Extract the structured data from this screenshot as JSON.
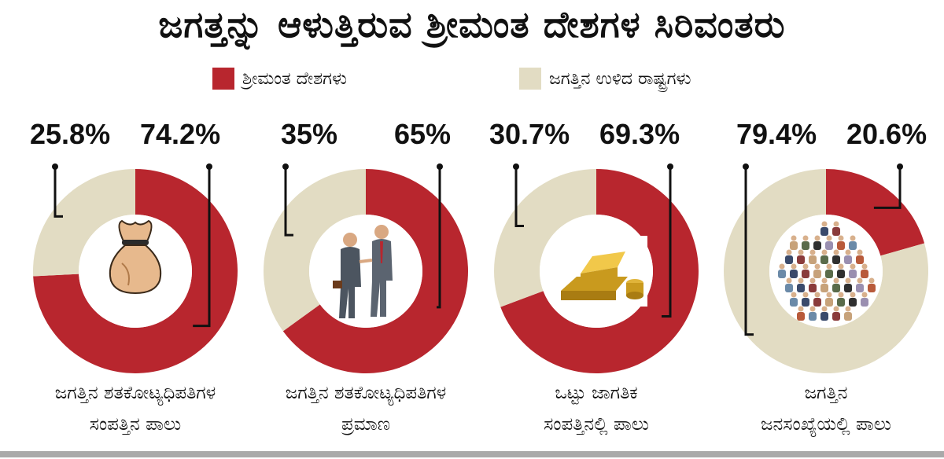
{
  "title": "ಜಗತ್ತನ್ನು ಆಳುತ್ತಿರುವ ಶ್ರೀಮಂತ ದೇಶಗಳ ಸಿರಿವಂತರು",
  "legend": [
    {
      "label": "ಶ್ರೀಮಂತ ದೇಶಗಳು",
      "color": "#b8262e"
    },
    {
      "label": "ಜಗತ್ತಿನ ಉಳಿದ ರಾಷ್ಟ್ರಗಳು",
      "color": "#e2dcc3"
    }
  ],
  "colors": {
    "rich": "#b8262e",
    "rest": "#e2dcc3"
  },
  "charts": [
    {
      "icon": "money-bag-icon",
      "rest_label": "25.8%",
      "rich_label": "74.2%",
      "caption_lines": [
        "ಜಗತ್ತಿನ ಶತಕೋಟ್ಯಧಿಪತಿಗಳ",
        "ಸಂಪತ್ತಿನ ಪಾಲು"
      ]
    },
    {
      "icon": "businessmen-handshake-icon",
      "rest_label": "35%",
      "rich_label": "65%",
      "caption_lines": [
        "ಜಗತ್ತಿನ ಶತಕೋಟ್ಯಧಿಪತಿಗಳ",
        "ಪ್ರಮಾಣ"
      ]
    },
    {
      "icon": "gold-bars-icon",
      "rest_label": "30.7%",
      "rich_label": "69.3%",
      "caption_lines": [
        "ಒಟ್ಟು ಜಾಗತಿಕ",
        "ಸಂಪತ್ತಿನಲ್ಲಿ ಪಾಲು"
      ]
    },
    {
      "icon": "crowd-icon",
      "rest_label": "79.4%",
      "rich_label": "20.6%",
      "caption_lines": [
        "ಜಗತ್ತಿನ",
        "ಜನಸಂಖ್ಯೆಯಲ್ಲಿ ಪಾಲು"
      ]
    }
  ],
  "chart_data": [
    {
      "type": "pie",
      "title": "",
      "categories": [
        "ಶ್ರೀಮಂತ ದೇಶಗಳು",
        "ಜಗತ್ತಿನ ಉಳಿದ ರಾಷ್ಟ್ರಗಳು"
      ],
      "values": [
        74.2,
        25.8
      ],
      "caption": "ಜಗತ್ತಿನ ಶತಕೋಟ್ಯಧಿಪತಿಗಳ ಸಂಪತ್ತಿನ ಪಾಲು"
    },
    {
      "type": "pie",
      "title": "",
      "categories": [
        "ಶ್ರೀಮಂತ ದೇಶಗಳು",
        "ಜಗತ್ತಿನ ಉಳಿದ ರಾಷ್ಟ್ರಗಳು"
      ],
      "values": [
        65,
        35
      ],
      "caption": "ಜಗತ್ತಿನ ಶತಕೋಟ್ಯಧಿಪತಿಗಳ ಪ್ರಮಾಣ"
    },
    {
      "type": "pie",
      "title": "",
      "categories": [
        "ಶ್ರೀಮಂತ ದೇಶಗಳು",
        "ಜಗತ್ತಿನ ಉಳಿದ ರಾಷ್ಟ್ರಗಳು"
      ],
      "values": [
        69.3,
        30.7
      ],
      "caption": "ಒಟ್ಟು ಜಾಗತಿಕ ಸಂಪತ್ತಿನಲ್ಲಿ ಪಾಲು"
    },
    {
      "type": "pie",
      "title": "",
      "categories": [
        "ಶ್ರೀಮಂತ ದೇಶಗಳು",
        "ಜಗತ್ತಿನ ಉಳಿದ ರಾಷ್ಟ್ರಗಳು"
      ],
      "values": [
        20.6,
        79.4
      ],
      "caption": "ಜಗತ್ತಿನ ಜನಸಂಖ್ಯೆಯಲ್ಲಿ ಪಾಲು"
    }
  ]
}
